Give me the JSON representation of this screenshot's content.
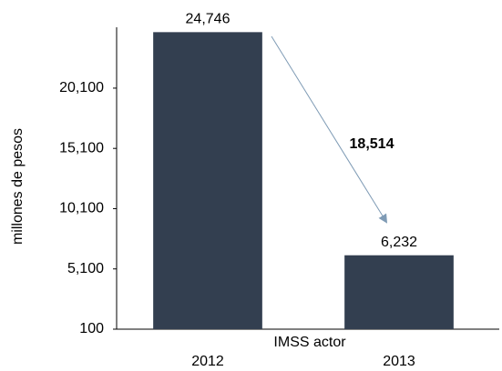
{
  "chart_data": {
    "type": "bar",
    "categories": [
      "2012",
      "2013"
    ],
    "values": [
      24746,
      6232
    ],
    "value_labels": [
      "24,746",
      "6,232"
    ],
    "color": "#333f50",
    "x_label": "IMSS actor",
    "y_label": "millones de pesos",
    "annotation": "18,514",
    "ylim": [
      100,
      25150
    ],
    "yticks": [
      100,
      {
        "value": 5100,
        "label": "5,100"
      },
      {
        "value": 10100,
        "label": "10,100"
      },
      {
        "value": 15100,
        "label": "15,100"
      },
      {
        "value": 20100,
        "label": "20,100"
      }
    ],
    "grid": false
  }
}
